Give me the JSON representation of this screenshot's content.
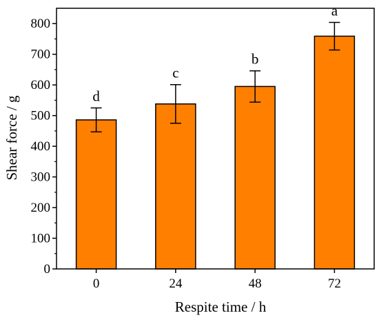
{
  "chart_data": {
    "type": "bar",
    "categories": [
      "0",
      "24",
      "48",
      "72"
    ],
    "values": [
      486,
      538,
      595,
      759
    ],
    "errors": [
      39,
      63,
      51,
      45
    ],
    "significance_letters": [
      "d",
      "c",
      "b",
      "a"
    ],
    "title": "",
    "xlabel": "Respite time / h",
    "ylabel": "Shear force / g",
    "ylim": [
      0,
      850
    ],
    "yticks": [
      0,
      100,
      200,
      300,
      400,
      500,
      600,
      700,
      800
    ],
    "grid": false,
    "legend": "none",
    "bar_color": "#ff7f00",
    "bar_edge_color": "#000000"
  }
}
